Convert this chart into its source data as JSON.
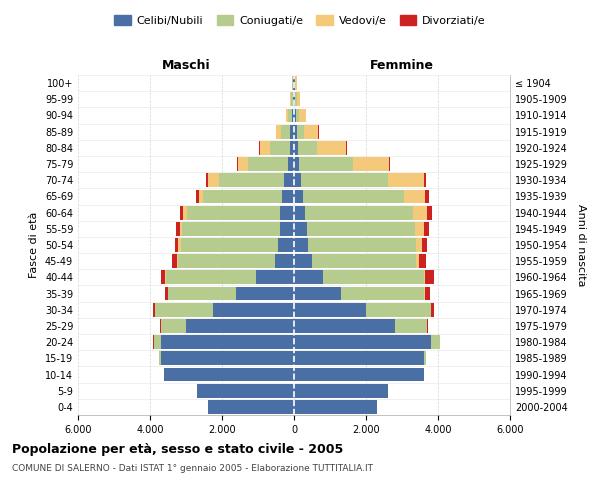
{
  "age_groups": [
    "0-4",
    "5-9",
    "10-14",
    "15-19",
    "20-24",
    "25-29",
    "30-34",
    "35-39",
    "40-44",
    "45-49",
    "50-54",
    "55-59",
    "60-64",
    "65-69",
    "70-74",
    "75-79",
    "80-84",
    "85-89",
    "90-94",
    "95-99",
    "100+"
  ],
  "birth_years": [
    "2000-2004",
    "1995-1999",
    "1990-1994",
    "1985-1989",
    "1980-1984",
    "1975-1979",
    "1970-1974",
    "1965-1969",
    "1960-1964",
    "1955-1959",
    "1950-1954",
    "1945-1949",
    "1940-1944",
    "1935-1939",
    "1930-1934",
    "1925-1929",
    "1920-1924",
    "1915-1919",
    "1910-1914",
    "1905-1909",
    "≤ 1904"
  ],
  "males": {
    "celibi": [
      2400,
      2700,
      3600,
      3700,
      3700,
      3000,
      2250,
      1600,
      1050,
      520,
      450,
      400,
      380,
      320,
      280,
      180,
      120,
      100,
      60,
      30,
      20
    ],
    "coniugati": [
      0,
      5,
      20,
      60,
      200,
      700,
      1600,
      1900,
      2500,
      2700,
      2700,
      2700,
      2600,
      2200,
      1800,
      1100,
      550,
      250,
      100,
      60,
      30
    ],
    "vedovi": [
      0,
      0,
      0,
      0,
      0,
      0,
      5,
      10,
      20,
      40,
      60,
      80,
      100,
      120,
      300,
      280,
      280,
      150,
      60,
      30,
      10
    ],
    "divorziati": [
      0,
      0,
      0,
      0,
      5,
      20,
      50,
      80,
      130,
      120,
      100,
      100,
      100,
      80,
      60,
      30,
      20,
      10,
      5,
      0,
      0
    ]
  },
  "females": {
    "nubili": [
      2300,
      2600,
      3600,
      3600,
      3800,
      2800,
      2000,
      1300,
      800,
      500,
      400,
      350,
      300,
      250,
      200,
      150,
      100,
      80,
      50,
      30,
      20
    ],
    "coniugate": [
      0,
      5,
      20,
      80,
      250,
      900,
      1800,
      2300,
      2800,
      2900,
      3000,
      3000,
      3000,
      2800,
      2400,
      1500,
      550,
      200,
      80,
      50,
      20
    ],
    "vedove": [
      0,
      0,
      0,
      0,
      0,
      5,
      10,
      30,
      50,
      80,
      150,
      250,
      400,
      600,
      1000,
      1000,
      800,
      400,
      200,
      80,
      30
    ],
    "divorziate": [
      0,
      0,
      0,
      0,
      10,
      30,
      80,
      150,
      250,
      200,
      150,
      150,
      120,
      100,
      80,
      30,
      20,
      10,
      5,
      0,
      0
    ]
  },
  "colors": {
    "celibi": "#4a6fa5",
    "coniugati": "#b5cc8e",
    "vedovi": "#f5c97a",
    "divorziati": "#cc2222"
  },
  "xlim": 6000,
  "tick_vals": [
    -6000,
    -4000,
    -2000,
    0,
    2000,
    4000,
    6000
  ],
  "tick_labels": [
    "6.000",
    "4.000",
    "2.000",
    "0",
    "2.000",
    "4.000",
    "6.000"
  ],
  "title": "Popolazione per età, sesso e stato civile - 2005",
  "subtitle": "COMUNE DI SALERNO - Dati ISTAT 1° gennaio 2005 - Elaborazione TUTTITALIA.IT",
  "legend_labels": [
    "Celibi/Nubili",
    "Coniugati/e",
    "Vedovi/e",
    "Divorziati/e"
  ],
  "left_label": "Maschi",
  "right_label": "Femmine",
  "yaxis_label": "Fasce di età",
  "right_yaxis_label": "Anni di nascita",
  "background_color": "#ffffff",
  "grid_color": "#cccccc"
}
